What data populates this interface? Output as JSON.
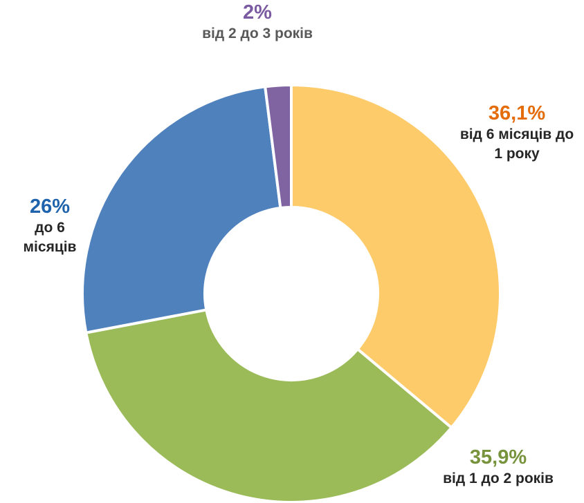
{
  "chart_data": {
    "type": "donut",
    "categories": [
      "від 6 місяців до 1 року",
      "від 1 до 2 років",
      "до 6 місяців",
      "від 2 до 3 років"
    ],
    "values": [
      36.1,
      35.9,
      26,
      2
    ],
    "value_labels": [
      "36,1%",
      "35,9%",
      "26%",
      "2%"
    ],
    "colors": [
      "#FECB6A",
      "#9BBB59",
      "#4F81BD",
      "#8064A2"
    ],
    "label_colors": [
      "#E46C0A",
      "#77933C",
      "#1F63AD",
      "#7A5AA0"
    ]
  }
}
